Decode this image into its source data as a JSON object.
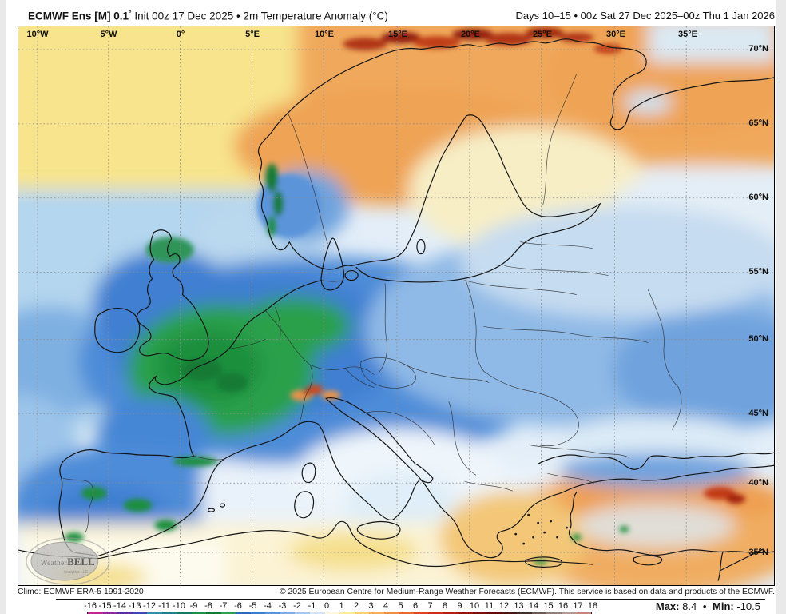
{
  "header": {
    "title_model": "ECMWF Ens [M] 0.1",
    "title_degree": "°",
    "title_desc": " Init 00z 17 Dec 2025 • 2m Temperature Anomaly (°C)",
    "valid_range": "Days 10–15 • 00z Sat 27 Dec 2025–00z Thu 1 Jan 2026"
  },
  "map": {
    "lon_labels": [
      "10°W",
      "5°W",
      "0°",
      "5°E",
      "10°E",
      "15°E",
      "20°E",
      "25°E",
      "30°E",
      "35°E"
    ],
    "lat_labels": [
      "70°N",
      "65°N",
      "60°N",
      "55°N",
      "50°N",
      "45°N",
      "40°N",
      "35°N"
    ],
    "watermark": {
      "brand_prefix": "Weather",
      "brand_suffix": "BELL",
      "subtitle": "Analytics LLC"
    }
  },
  "footer": {
    "climo": "Climo: ECMWF ERA-5 1991-2020",
    "copyright": "© 2025 European Centre for Medium-Range Weather Forecasts (ECMWF). This service is based on data and products of the ECMWF."
  },
  "colorbar": {
    "ticks": [
      -16,
      -15,
      -14,
      -13,
      -12,
      -11,
      -10,
      -9,
      -8,
      -7,
      -6,
      -5,
      -4,
      -3,
      -2,
      -1,
      0,
      1,
      2,
      3,
      4,
      5,
      6,
      7,
      8,
      9,
      10,
      11,
      12,
      13,
      14,
      15,
      16,
      17,
      18
    ],
    "colors": [
      "#c2278f",
      "#8f2a9c",
      "#5c2ea6",
      "#3d49b8",
      "#2e8fa8",
      "#1f7f8c",
      "#157a5f",
      "#1e9147",
      "#137a31",
      "#2fa14d",
      "#2e66c0",
      "#3f7fd2",
      "#5b94da",
      "#7fade4",
      "#a7c8ee",
      "#d2e4f6",
      "#fdf8dc",
      "#fbec9a",
      "#f8d06e",
      "#f4ae5a",
      "#ef8f43",
      "#e86a2f",
      "#de4522",
      "#cd2d1a",
      "#b21d14",
      "#97140f",
      "#7d0f0c",
      "#640b0a",
      "#4a1612",
      "#43302b",
      "#6b5a55",
      "#93807b",
      "#b49a95",
      "#c9837b"
    ],
    "max_label": "Max:",
    "max_value": "8.4",
    "separator": "•",
    "min_label": "Min:",
    "min_value": "-10.5"
  },
  "chart_data": {
    "type": "heatmap",
    "title": "ECMWF Ens [M] 0.1° 2m Temperature Anomaly (°C)",
    "subtitle": "Days 10–15 • 00z Sat 27 Dec 2025–00z Thu 1 Jan 2026",
    "init": "Init 00z 17 Dec 2025",
    "units": "°C",
    "region": "Europe",
    "lon_ticks": [
      "10°W",
      "5°W",
      "0°",
      "5°E",
      "10°E",
      "15°E",
      "20°E",
      "25°E",
      "30°E",
      "35°E"
    ],
    "lat_ticks": [
      "70°N",
      "65°N",
      "60°N",
      "55°N",
      "50°N",
      "45°N",
      "40°N",
      "35°N"
    ],
    "scale_range": [
      -16,
      18
    ],
    "scale_step": 1,
    "max": 8.4,
    "min": -10.5,
    "climatology": "ECMWF ERA-5 1991-2020",
    "notable_features": [
      {
        "area": "France / Benelux",
        "anomaly": "-7 to -9 (green core of cold anomaly)"
      },
      {
        "area": "Central and Eastern Europe, Iberia",
        "anomaly": "-3 to -6 (blue)"
      },
      {
        "area": "Scandinavia / NW Russia",
        "anomaly": "+2 to +5 (orange), +6 to +8 streaks on Arctic coast"
      },
      {
        "area": "Mediterranean / North Africa",
        "anomaly": "-1 to +1 (near normal)"
      },
      {
        "area": "Turkey / Black Sea south coast",
        "anomaly": "+2 to +5 (orange) with mottled near-normal Anatolia"
      }
    ]
  }
}
